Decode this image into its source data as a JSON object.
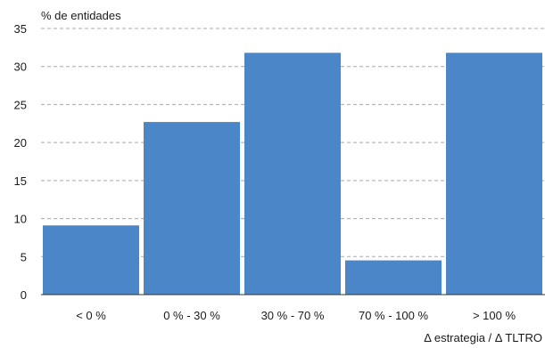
{
  "chart_data": {
    "type": "bar",
    "ylabel": "% de entidades",
    "xlabel": "Δ estrategia / Δ TLTRO",
    "categories": [
      "< 0 %",
      "0 % - 30 %",
      "30 % - 70 %",
      "70 % - 100 %",
      "> 100 %"
    ],
    "values": [
      9.1,
      22.7,
      31.8,
      4.5,
      31.8
    ],
    "ylim": [
      0,
      35
    ],
    "yticks": [
      0,
      5,
      10,
      15,
      20,
      25,
      30,
      35
    ],
    "grid": true,
    "bar_color": "#4a86c8",
    "grid_color": "#a8a8a8"
  }
}
